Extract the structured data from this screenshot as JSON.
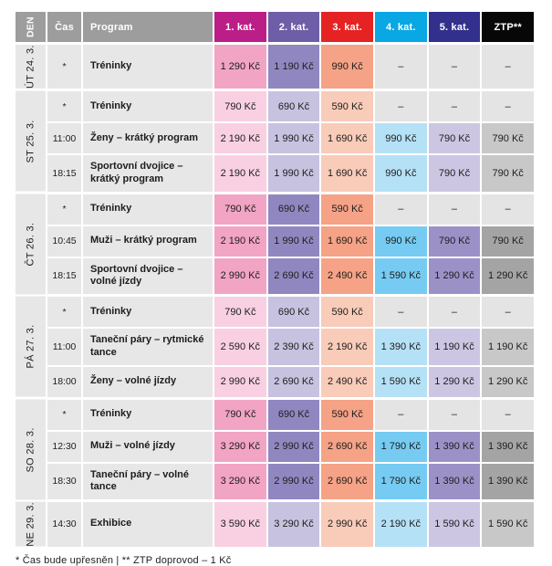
{
  "table": {
    "headers": {
      "den": "DEN",
      "cas": "Čas",
      "program": "Program",
      "categories": [
        "1. kat.",
        "2. kat.",
        "3. kat.",
        "4. kat.",
        "5. kat.",
        "ZTP**"
      ]
    },
    "colors": {
      "header_left_bg": "#9d9d9d",
      "category_header_bg": [
        "#bb1e87",
        "#6e5ea7",
        "#e52322",
        "#09a7e4",
        "#32308c",
        "#070707"
      ],
      "cells_dark": [
        "#f2a4c5",
        "#9187c0",
        "#f5a286",
        "#76cbf2",
        "#9c91c7",
        "#a4a4a4"
      ],
      "cells_light": [
        "#f9d0e2",
        "#c7c2e0",
        "#f9cbb9",
        "#b5e1f7",
        "#ccc6e3",
        "#c8c8c8"
      ],
      "empty_cell": "#e4e4e4",
      "left_cell": "#e7e7e7"
    },
    "empty_value": "–",
    "groups": [
      {
        "day": "ÚT 24. 3.",
        "shade": "dark",
        "rows": [
          {
            "time": "*",
            "program": "Tréninky",
            "prices": [
              "1 290 Kč",
              "1 190 Kč",
              "990 Kč",
              "–",
              "–",
              "–"
            ]
          }
        ]
      },
      {
        "day": "ST 25. 3.",
        "shade": "light",
        "rows": [
          {
            "time": "*",
            "program": "Tréninky",
            "prices": [
              "790 Kč",
              "690 Kč",
              "590 Kč",
              "–",
              "–",
              "–"
            ]
          },
          {
            "time": "11:00",
            "program": "Ženy – krátký program",
            "prices": [
              "2 190 Kč",
              "1 990 Kč",
              "1 690 Kč",
              "990 Kč",
              "790 Kč",
              "790 Kč"
            ]
          },
          {
            "time": "18:15",
            "program": "Sportovní dvojice – krátký program",
            "prices": [
              "2 190 Kč",
              "1 990 Kč",
              "1 690 Kč",
              "990 Kč",
              "790 Kč",
              "790 Kč"
            ]
          }
        ]
      },
      {
        "day": "ČT 26. 3.",
        "shade": "dark",
        "rows": [
          {
            "time": "*",
            "program": "Tréninky",
            "prices": [
              "790 Kč",
              "690 Kč",
              "590 Kč",
              "–",
              "–",
              "–"
            ]
          },
          {
            "time": "10:45",
            "program": "Muži – krátký program",
            "prices": [
              "2 190 Kč",
              "1 990 Kč",
              "1 690 Kč",
              "990 Kč",
              "790 Kč",
              "790 Kč"
            ]
          },
          {
            "time": "18:15",
            "program": "Sportovní dvojice – volné jízdy",
            "prices": [
              "2 990 Kč",
              "2 690 Kč",
              "2 490 Kč",
              "1 590 Kč",
              "1 290 Kč",
              "1 290 Kč"
            ]
          }
        ]
      },
      {
        "day": "PÁ 27. 3.",
        "shade": "light",
        "rows": [
          {
            "time": "*",
            "program": "Tréninky",
            "prices": [
              "790 Kč",
              "690 Kč",
              "590 Kč",
              "–",
              "–",
              "–"
            ]
          },
          {
            "time": "11:00",
            "program": "Taneční páry – rytmické tance",
            "prices": [
              "2 590 Kč",
              "2 390 Kč",
              "2 190 Kč",
              "1 390 Kč",
              "1 190 Kč",
              "1 190 Kč"
            ]
          },
          {
            "time": "18:00",
            "program": "Ženy – volné jízdy",
            "prices": [
              "2 990 Kč",
              "2 690 Kč",
              "2 490 Kč",
              "1 590 Kč",
              "1 290 Kč",
              "1 290 Kč"
            ]
          }
        ]
      },
      {
        "day": "SO 28. 3.",
        "shade": "dark",
        "rows": [
          {
            "time": "*",
            "program": "Tréninky",
            "prices": [
              "790 Kč",
              "690 Kč",
              "590 Kč",
              "–",
              "–",
              "–"
            ]
          },
          {
            "time": "12:30",
            "program": "Muži – volné jízdy",
            "prices": [
              "3 290 Kč",
              "2 990 Kč",
              "2 690 Kč",
              "1 790 Kč",
              "1 390 Kč",
              "1 390 Kč"
            ]
          },
          {
            "time": "18:30",
            "program": "Taneční páry – volné tance",
            "prices": [
              "3 290 Kč",
              "2 990 Kč",
              "2 690 Kč",
              "1 790 Kč",
              "1 390 Kč",
              "1 390 Kč"
            ]
          }
        ]
      },
      {
        "day": "NE 29. 3.",
        "shade": "light",
        "rows": [
          {
            "time": "14:30",
            "program": "Exhibice",
            "prices": [
              "3 590 Kč",
              "3 290 Kč",
              "2 990 Kč",
              "2 190 Kč",
              "1 590 Kč",
              "1 590 Kč"
            ]
          }
        ]
      }
    ]
  },
  "footnote": "* Čas bude upřesněn | ** ZTP doprovod – 1 Kč"
}
